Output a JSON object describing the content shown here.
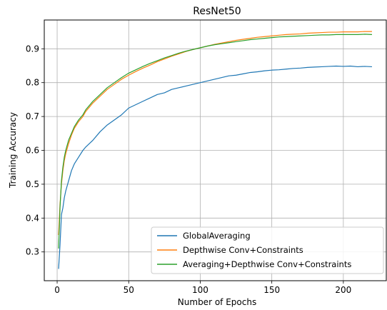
{
  "chart_data": {
    "type": "line",
    "title": "ResNet50",
    "xlabel": "Number of Epochs",
    "ylabel": "Training Accuracy",
    "xlim": [
      -9,
      230
    ],
    "ylim": [
      0.215,
      0.985
    ],
    "xticks": [
      0,
      50,
      100,
      150,
      200
    ],
    "yticks": [
      0.3,
      0.4,
      0.5,
      0.6,
      0.7,
      0.8,
      0.9
    ],
    "ytick_labels": [
      "0.3",
      "0.4",
      "0.5",
      "0.6",
      "0.7",
      "0.8",
      "0.9"
    ],
    "grid": true,
    "legend_position": "lower-right",
    "series": [
      {
        "name": "GlobalAveraging",
        "color": "#1f77b4",
        "points": [
          [
            1,
            0.25
          ],
          [
            2,
            0.32
          ],
          [
            3,
            0.41
          ],
          [
            4,
            0.43
          ],
          [
            5,
            0.46
          ],
          [
            6,
            0.48
          ],
          [
            8,
            0.51
          ],
          [
            10,
            0.54
          ],
          [
            12,
            0.56
          ],
          [
            15,
            0.58
          ],
          [
            18,
            0.6
          ],
          [
            20,
            0.61
          ],
          [
            25,
            0.63
          ],
          [
            30,
            0.655
          ],
          [
            35,
            0.675
          ],
          [
            40,
            0.69
          ],
          [
            45,
            0.705
          ],
          [
            50,
            0.725
          ],
          [
            55,
            0.735
          ],
          [
            60,
            0.745
          ],
          [
            65,
            0.755
          ],
          [
            70,
            0.765
          ],
          [
            75,
            0.77
          ],
          [
            80,
            0.78
          ],
          [
            85,
            0.785
          ],
          [
            90,
            0.79
          ],
          [
            95,
            0.795
          ],
          [
            100,
            0.8
          ],
          [
            105,
            0.805
          ],
          [
            110,
            0.81
          ],
          [
            115,
            0.815
          ],
          [
            120,
            0.82
          ],
          [
            125,
            0.822
          ],
          [
            130,
            0.826
          ],
          [
            135,
            0.83
          ],
          [
            140,
            0.832
          ],
          [
            145,
            0.835
          ],
          [
            150,
            0.837
          ],
          [
            155,
            0.838
          ],
          [
            160,
            0.84
          ],
          [
            165,
            0.842
          ],
          [
            170,
            0.843
          ],
          [
            175,
            0.845
          ],
          [
            180,
            0.846
          ],
          [
            185,
            0.847
          ],
          [
            190,
            0.848
          ],
          [
            195,
            0.849
          ],
          [
            200,
            0.848
          ],
          [
            205,
            0.849
          ],
          [
            210,
            0.847
          ],
          [
            215,
            0.848
          ],
          [
            220,
            0.847
          ]
        ]
      },
      {
        "name": "Depthwise Conv+Constraints",
        "color": "#ff7f0e",
        "points": [
          [
            1,
            0.35
          ],
          [
            2,
            0.44
          ],
          [
            3,
            0.5
          ],
          [
            4,
            0.54
          ],
          [
            5,
            0.57
          ],
          [
            6,
            0.59
          ],
          [
            8,
            0.62
          ],
          [
            10,
            0.645
          ],
          [
            12,
            0.665
          ],
          [
            15,
            0.685
          ],
          [
            18,
            0.7
          ],
          [
            20,
            0.715
          ],
          [
            25,
            0.74
          ],
          [
            30,
            0.76
          ],
          [
            35,
            0.78
          ],
          [
            40,
            0.795
          ],
          [
            45,
            0.81
          ],
          [
            50,
            0.822
          ],
          [
            55,
            0.833
          ],
          [
            60,
            0.843
          ],
          [
            65,
            0.852
          ],
          [
            70,
            0.862
          ],
          [
            75,
            0.87
          ],
          [
            80,
            0.878
          ],
          [
            85,
            0.885
          ],
          [
            90,
            0.892
          ],
          [
            95,
            0.898
          ],
          [
            100,
            0.903
          ],
          [
            105,
            0.908
          ],
          [
            110,
            0.913
          ],
          [
            115,
            0.917
          ],
          [
            120,
            0.921
          ],
          [
            125,
            0.925
          ],
          [
            130,
            0.928
          ],
          [
            135,
            0.931
          ],
          [
            140,
            0.934
          ],
          [
            145,
            0.936
          ],
          [
            150,
            0.938
          ],
          [
            155,
            0.94
          ],
          [
            160,
            0.942
          ],
          [
            165,
            0.943
          ],
          [
            170,
            0.944
          ],
          [
            175,
            0.946
          ],
          [
            180,
            0.947
          ],
          [
            185,
            0.948
          ],
          [
            190,
            0.949
          ],
          [
            195,
            0.949
          ],
          [
            200,
            0.95
          ],
          [
            205,
            0.95
          ],
          [
            210,
            0.95
          ],
          [
            215,
            0.951
          ],
          [
            220,
            0.951
          ]
        ]
      },
      {
        "name": "Averaging+Depthwise Conv+Constraints",
        "color": "#2ca02c",
        "points": [
          [
            1,
            0.31
          ],
          [
            2,
            0.43
          ],
          [
            3,
            0.51
          ],
          [
            4,
            0.55
          ],
          [
            5,
            0.58
          ],
          [
            6,
            0.6
          ],
          [
            8,
            0.63
          ],
          [
            10,
            0.65
          ],
          [
            12,
            0.67
          ],
          [
            15,
            0.69
          ],
          [
            18,
            0.705
          ],
          [
            20,
            0.72
          ],
          [
            25,
            0.745
          ],
          [
            30,
            0.765
          ],
          [
            35,
            0.785
          ],
          [
            40,
            0.8
          ],
          [
            45,
            0.815
          ],
          [
            50,
            0.828
          ],
          [
            55,
            0.838
          ],
          [
            60,
            0.848
          ],
          [
            65,
            0.857
          ],
          [
            70,
            0.865
          ],
          [
            75,
            0.873
          ],
          [
            80,
            0.88
          ],
          [
            85,
            0.887
          ],
          [
            90,
            0.893
          ],
          [
            95,
            0.898
          ],
          [
            100,
            0.903
          ],
          [
            105,
            0.908
          ],
          [
            110,
            0.912
          ],
          [
            115,
            0.915
          ],
          [
            120,
            0.918
          ],
          [
            125,
            0.921
          ],
          [
            130,
            0.924
          ],
          [
            135,
            0.927
          ],
          [
            140,
            0.929
          ],
          [
            145,
            0.931
          ],
          [
            150,
            0.933
          ],
          [
            155,
            0.935
          ],
          [
            160,
            0.936
          ],
          [
            165,
            0.937
          ],
          [
            170,
            0.938
          ],
          [
            175,
            0.939
          ],
          [
            180,
            0.94
          ],
          [
            185,
            0.941
          ],
          [
            190,
            0.941
          ],
          [
            195,
            0.942
          ],
          [
            200,
            0.942
          ],
          [
            205,
            0.942
          ],
          [
            210,
            0.942
          ],
          [
            215,
            0.943
          ],
          [
            220,
            0.942
          ]
        ]
      }
    ]
  }
}
